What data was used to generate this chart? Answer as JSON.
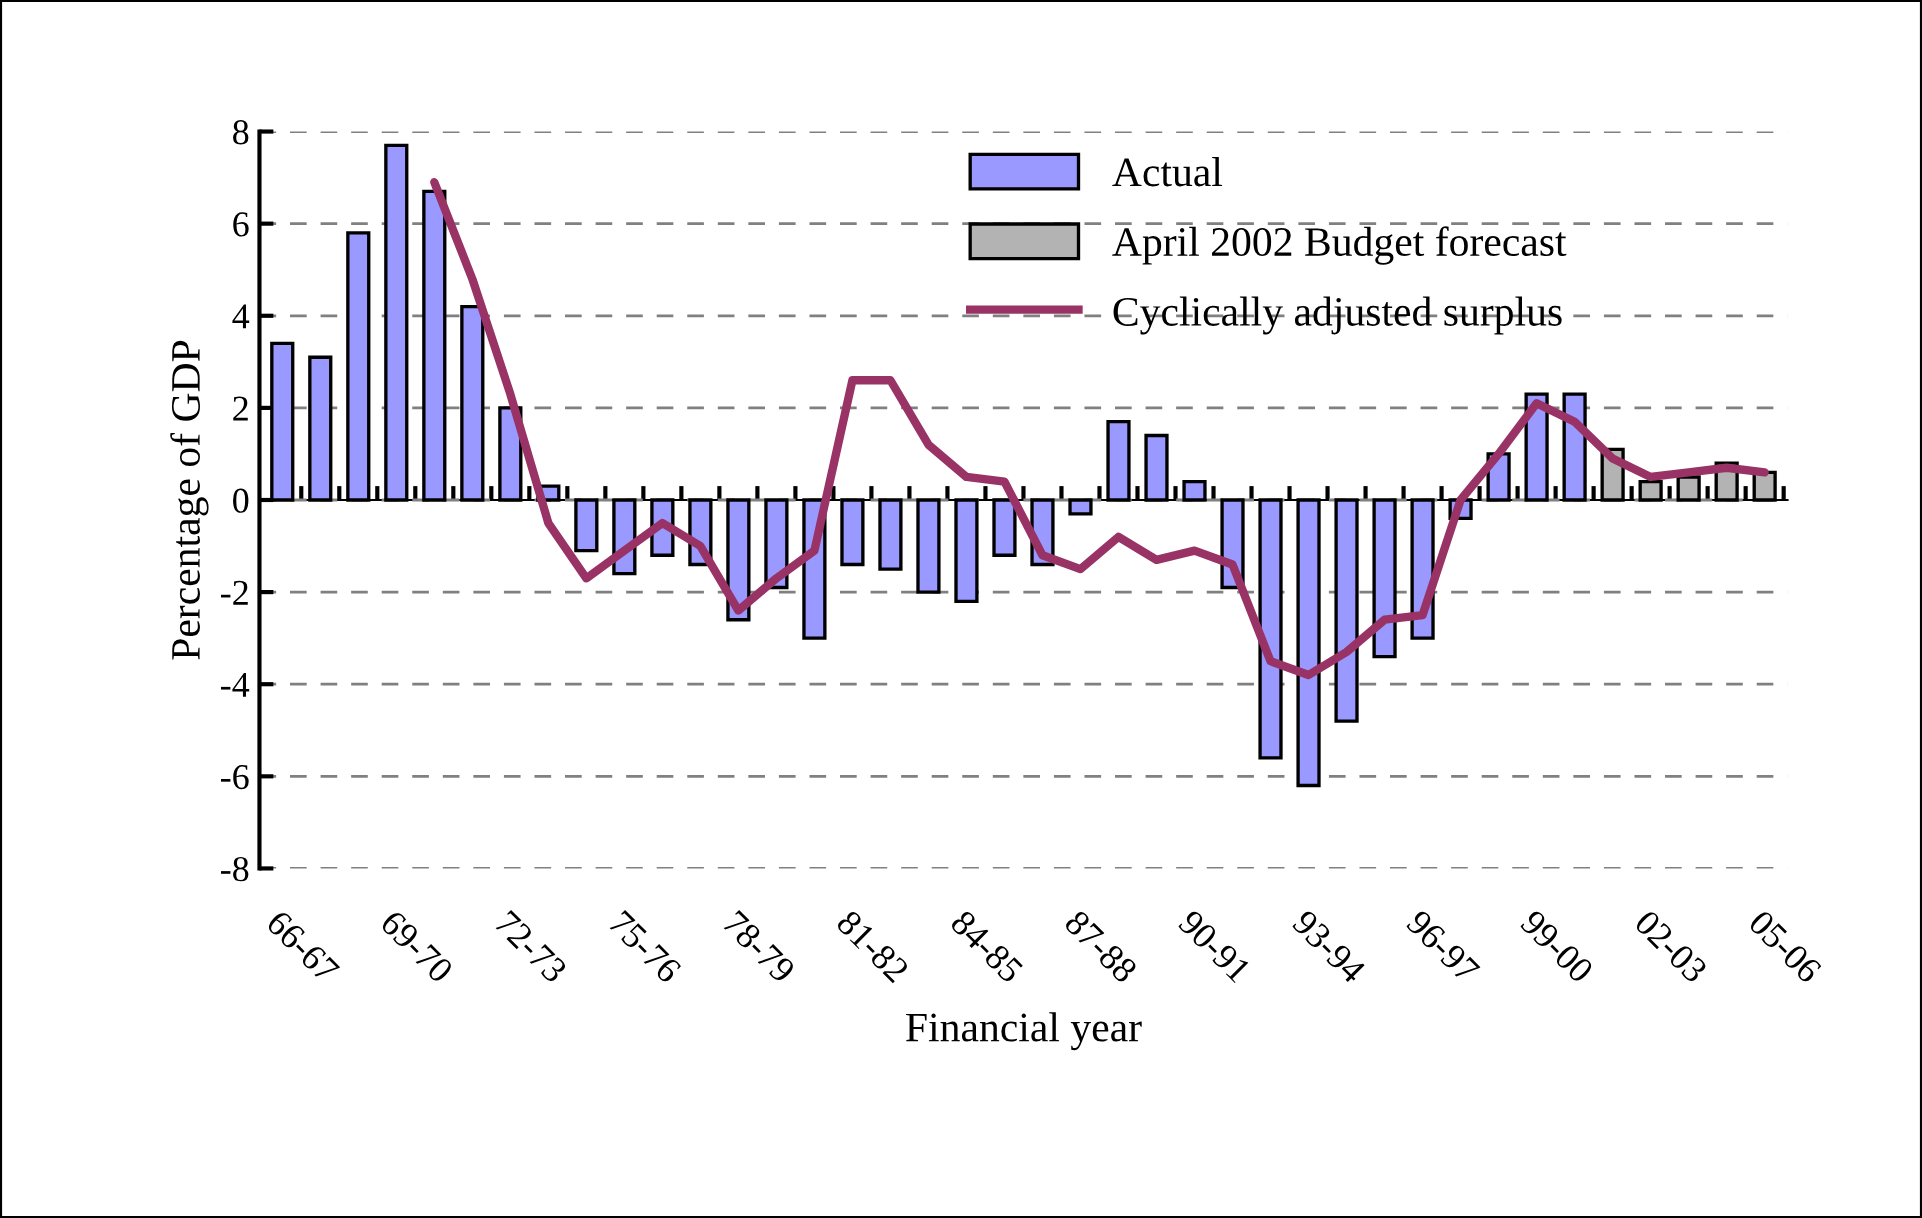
{
  "chart_data": {
    "type": "bar",
    "xlabel": "Financial year",
    "ylabel": "Percentage of GDP",
    "categories": [
      "66-67",
      null,
      null,
      "69-70",
      null,
      null,
      "72-73",
      null,
      null,
      "75-76",
      null,
      null,
      "78-79",
      null,
      null,
      "81-82",
      null,
      null,
      "84-85",
      null,
      null,
      "87-88",
      null,
      null,
      "90-91",
      null,
      null,
      "93-94",
      null,
      null,
      "96-97",
      null,
      null,
      "99-00",
      null,
      null,
      "02-03",
      null,
      null,
      "05-06"
    ],
    "series": [
      {
        "name": "Actual",
        "color": "#9999ff",
        "values": [
          3.4,
          3.1,
          5.8,
          7.7,
          6.7,
          4.2,
          2.0,
          0.3,
          -1.1,
          -1.6,
          -1.2,
          -1.4,
          -2.6,
          -1.9,
          -3.0,
          -1.4,
          -1.5,
          -2.0,
          -2.2,
          -1.2,
          -1.4,
          -0.3,
          1.7,
          1.4,
          0.4,
          -1.9,
          -5.6,
          -6.2,
          -4.8,
          -3.4,
          -3.0,
          -0.4,
          1.0,
          2.3,
          2.3,
          null,
          null,
          null,
          null,
          null
        ]
      },
      {
        "name": "April 2002 Budget forecast",
        "color": "#b3b3b3",
        "values": [
          null,
          null,
          null,
          null,
          null,
          null,
          null,
          null,
          null,
          null,
          null,
          null,
          null,
          null,
          null,
          null,
          null,
          null,
          null,
          null,
          null,
          null,
          null,
          null,
          null,
          null,
          null,
          null,
          null,
          null,
          null,
          null,
          null,
          null,
          null,
          1.1,
          0.4,
          0.5,
          0.8,
          0.6
        ]
      },
      {
        "name": "Cyclically adjusted surplus",
        "type": "line",
        "color": "#993366",
        "values": [
          null,
          null,
          null,
          null,
          6.9,
          4.8,
          2.3,
          -0.5,
          -1.7,
          -1.1,
          -0.5,
          -1.0,
          -2.4,
          -1.7,
          -1.1,
          2.6,
          2.6,
          1.2,
          0.5,
          0.4,
          -1.2,
          -1.5,
          -0.8,
          -1.3,
          -1.1,
          -1.4,
          -3.5,
          -3.8,
          -3.3,
          -2.6,
          -2.5,
          0.0,
          1.0,
          2.1,
          1.7,
          0.9,
          0.5,
          0.6,
          0.7,
          0.6
        ]
      }
    ],
    "ylim": [
      -8,
      8
    ],
    "yticks": [
      -8,
      -6,
      -4,
      -2,
      0,
      2,
      4,
      6,
      8
    ],
    "grid": "y",
    "legend": "top right",
    "marker": "none",
    "line_style": "solid"
  }
}
